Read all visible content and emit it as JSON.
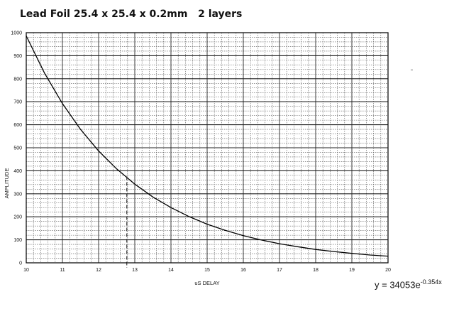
{
  "chart_data": {
    "type": "line",
    "title": "Lead Foil 25.4 x 25.4 x 0.2mm   2 layers",
    "xlabel": "uS DELAY",
    "ylabel": "AMPLITUDE",
    "xlim": [
      10,
      20
    ],
    "ylim": [
      0,
      1000
    ],
    "x_ticks": [
      "10",
      "11",
      "12",
      "13",
      "14",
      "15",
      "16",
      "17",
      "18",
      "19",
      "20"
    ],
    "y_ticks": [
      "0",
      "100",
      "200",
      "300",
      "400",
      "500",
      "600",
      "700",
      "800",
      "900",
      "1000"
    ],
    "grid": true,
    "series": [
      {
        "x": [
          10,
          10.5,
          11,
          11.5,
          12,
          12.5,
          13,
          13.5,
          14,
          14.5,
          15,
          15.5,
          16,
          16.5,
          17,
          17.5,
          18,
          18.5,
          19,
          19.5,
          20
        ],
        "values": [
          986,
          826,
          692,
          580,
          486,
          408,
          342,
          286,
          240,
          201,
          168,
          141,
          118,
          99,
          83,
          70,
          58,
          49,
          41,
          34,
          29
        ]
      }
    ],
    "annotations": [
      {
        "type": "vertical-dashed-line",
        "x": 12.78,
        "y_top": 375
      }
    ],
    "equation": {
      "prefix": "y = 34053e",
      "exponent": "-0.354x"
    }
  }
}
